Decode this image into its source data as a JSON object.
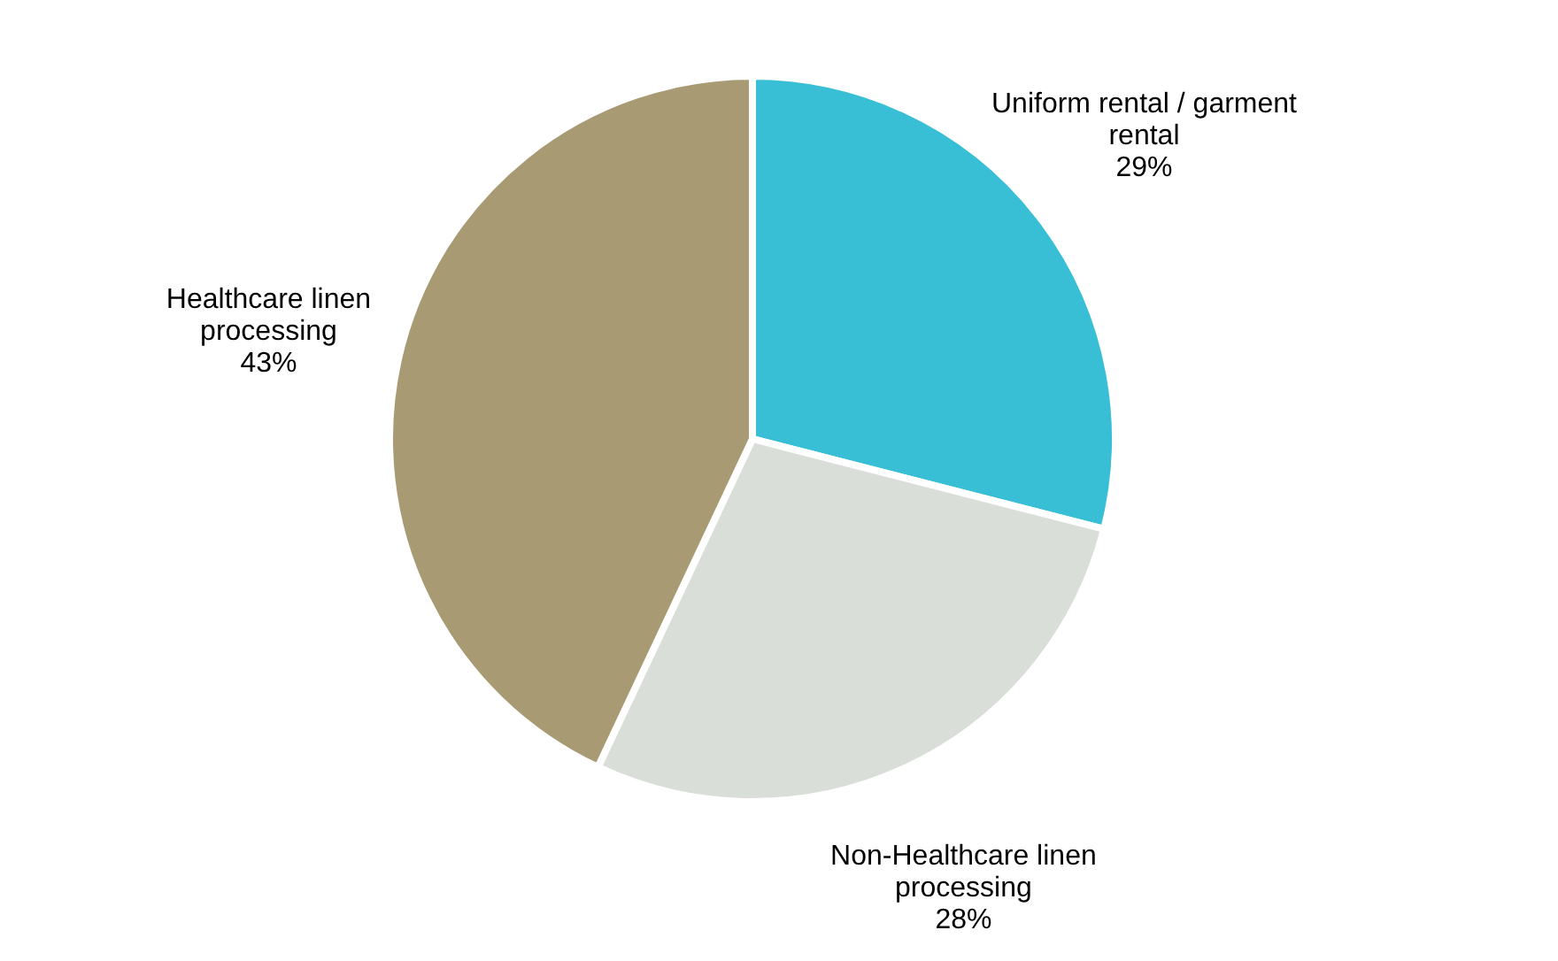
{
  "chart_data": {
    "type": "pie",
    "categories": [
      "Uniform rental / garment rental",
      "Non-Healthcare linen processing",
      "Healthcare linen processing"
    ],
    "values": [
      29,
      28,
      43
    ],
    "value_labels": [
      "29%",
      "28%",
      "43%"
    ],
    "colors": [
      "#38bfd6",
      "#d9dfd8",
      "#a89a72"
    ]
  }
}
